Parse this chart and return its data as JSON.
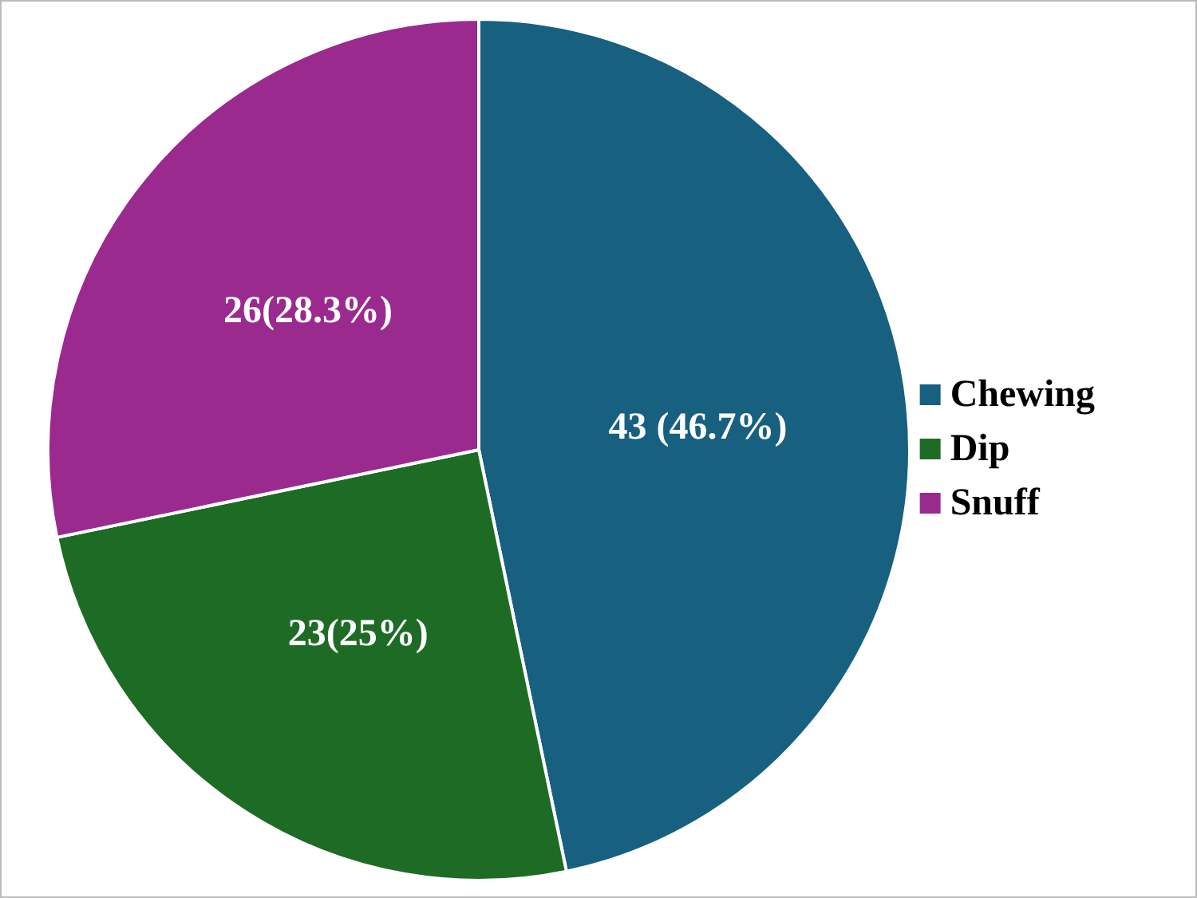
{
  "chart_data": {
    "type": "pie",
    "categories": [
      "Chewing",
      "Dip",
      "Snuff"
    ],
    "values": [
      43,
      23,
      26
    ],
    "colors": [
      "#17607f",
      "#1e6b25",
      "#9b2a8f"
    ],
    "value_labels": [
      "43 (46.7%)",
      "23(25%)",
      "26(28.3%)"
    ],
    "legend": "right"
  }
}
